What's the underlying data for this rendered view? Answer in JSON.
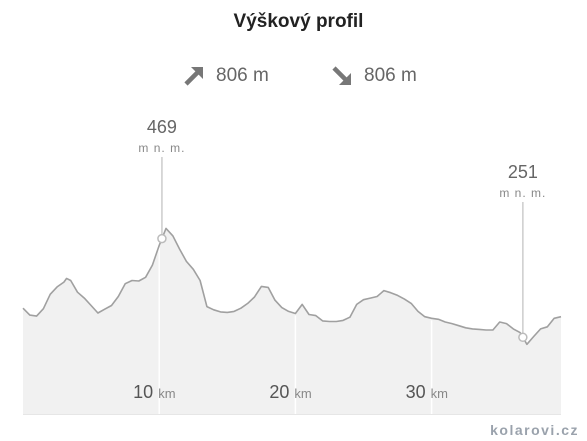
{
  "header": {
    "title": "Výškový profil"
  },
  "stats": {
    "ascent": {
      "icon": "arrow-up-right-icon",
      "value": "806 m"
    },
    "descent": {
      "icon": "arrow-down-right-icon",
      "value": "806 m"
    }
  },
  "colors": {
    "line": "#a0a0a0",
    "fill": "#f1f1f1",
    "marker": "#cccccc",
    "text": "#666666"
  },
  "chart_data": {
    "type": "area",
    "title": "Výškový profil",
    "xlabel": "",
    "ylabel": "",
    "x_unit": "km",
    "y_unit": "m n. m.",
    "xlim": [
      0,
      39.5
    ],
    "ylim": [
      120,
      560
    ],
    "grid": false,
    "x": [
      0,
      0.5,
      1.0,
      1.5,
      2.0,
      2.5,
      3.0,
      3.2,
      3.5,
      4.0,
      4.5,
      5.0,
      5.5,
      6.0,
      6.5,
      7.0,
      7.5,
      8.0,
      8.5,
      9.0,
      9.5,
      10.0,
      10.5,
      11.0,
      11.5,
      12.0,
      12.5,
      13.0,
      13.5,
      14.0,
      14.5,
      15.0,
      15.5,
      16.0,
      16.5,
      17.0,
      17.5,
      18.0,
      18.5,
      19.0,
      19.5,
      20.0,
      20.5,
      21.0,
      21.5,
      22.0,
      22.5,
      23.0,
      23.5,
      24.0,
      24.5,
      25.0,
      25.5,
      26.0,
      26.5,
      27.0,
      27.5,
      28.0,
      28.5,
      29.0,
      29.5,
      30.0,
      30.5,
      31.0,
      31.5,
      32.0,
      32.5,
      33.0,
      33.5,
      34.0,
      34.5,
      35.0,
      35.5,
      36.0,
      36.5,
      37.0,
      37.5,
      38.0,
      38.5,
      39.0,
      39.5
    ],
    "y": [
      319,
      306,
      304,
      318,
      345,
      359,
      368,
      375,
      371,
      349,
      338,
      324,
      310,
      317,
      324,
      341,
      365,
      371,
      370,
      377,
      400,
      437,
      469,
      455,
      430,
      407,
      392,
      371,
      322,
      316,
      312,
      311,
      313,
      319,
      328,
      340,
      360,
      358,
      334,
      320,
      313,
      309,
      326,
      307,
      305,
      295,
      294,
      294,
      296,
      302,
      326,
      335,
      338,
      341,
      352,
      348,
      343,
      336,
      328,
      313,
      303,
      300,
      298,
      293,
      290,
      286,
      282,
      280,
      279,
      278,
      278,
      293,
      290,
      280,
      273,
      251,
      266,
      280,
      284,
      300,
      303
    ],
    "peaks": [
      {
        "x": 10.2,
        "value": "469",
        "unit": "m n. m."
      },
      {
        "x": 36.7,
        "value": "251",
        "unit": "m n. m."
      }
    ],
    "x_ticks": [
      {
        "x": 10,
        "label": "10",
        "unit": "km"
      },
      {
        "x": 20,
        "label": "20",
        "unit": "km"
      },
      {
        "x": 30,
        "label": "30",
        "unit": "km"
      }
    ]
  },
  "branding": {
    "site": "kolarovi.cz"
  }
}
